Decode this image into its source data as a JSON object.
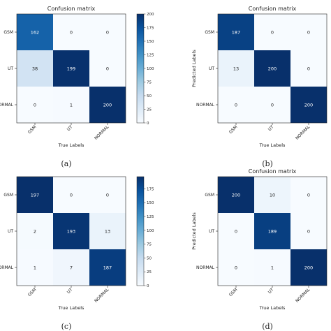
{
  "chart_data": [
    {
      "type": "heatmap",
      "title": "Confusion matrix",
      "xlabel": "True Labels",
      "ylabel": "",
      "x_categories": [
        "GSM",
        "UT",
        "NORMAL"
      ],
      "y_categories": [
        "GSM",
        "UT",
        "NORMAL"
      ],
      "matrix": [
        [
          162,
          0,
          0
        ],
        [
          38,
          199,
          0
        ],
        [
          0,
          1,
          200
        ]
      ],
      "colorbar": true,
      "colorbar_range": [
        0,
        200
      ],
      "colorbar_ticks": [
        "0",
        "25",
        "50",
        "75",
        "100",
        "125",
        "150",
        "175",
        "200"
      ],
      "caption": "(a)"
    },
    {
      "type": "heatmap",
      "title": "Confusion matrix",
      "xlabel": "True Labels",
      "ylabel": "Predicted Labels",
      "x_categories": [
        "GSM",
        "UT",
        "NORMAL"
      ],
      "y_categories": [
        "GSM",
        "UT",
        "NORMAL"
      ],
      "matrix": [
        [
          187,
          0,
          0
        ],
        [
          13,
          200,
          0
        ],
        [
          0,
          0,
          200
        ]
      ],
      "colorbar": false,
      "colorbar_range": [
        0,
        200
      ],
      "colorbar_ticks": [],
      "caption": "(b)"
    },
    {
      "type": "heatmap",
      "title": "",
      "xlabel": "True Labels",
      "ylabel": "",
      "x_categories": [
        "GSM",
        "UT",
        "NORMAL"
      ],
      "y_categories": [
        "GSM",
        "UT",
        "NORMAL"
      ],
      "matrix": [
        [
          197,
          0,
          0
        ],
        [
          2,
          193,
          13
        ],
        [
          1,
          7,
          187
        ]
      ],
      "colorbar": true,
      "colorbar_range": [
        0,
        197
      ],
      "colorbar_ticks": [
        "0",
        "25",
        "50",
        "75",
        "100",
        "125",
        "150",
        "175"
      ],
      "caption": "(c)"
    },
    {
      "type": "heatmap",
      "title": "Confusion matrix",
      "xlabel": "True Labels",
      "ylabel": "Predicted Labels",
      "x_categories": [
        "GSM",
        "UT",
        "NORMAL"
      ],
      "y_categories": [
        "GSM",
        "UT",
        "NORMAL"
      ],
      "matrix": [
        [
          200,
          10,
          0
        ],
        [
          0,
          189,
          0
        ],
        [
          0,
          1,
          200
        ]
      ],
      "colorbar": false,
      "colorbar_range": [
        0,
        200
      ],
      "colorbar_ticks": [],
      "caption": "(d)"
    }
  ]
}
